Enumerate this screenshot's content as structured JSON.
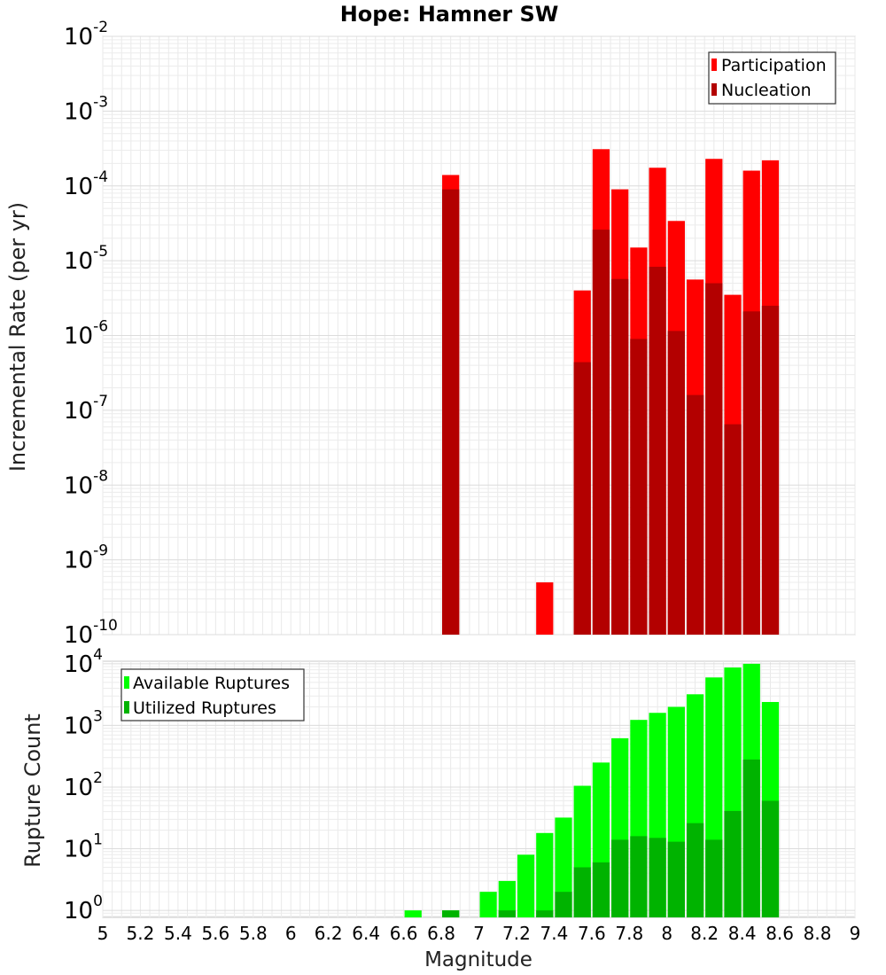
{
  "chart_data": [
    {
      "type": "bar",
      "title": "Hope: Hamner SW",
      "ylabel": "Incremental Rate (per yr)",
      "xlabel": "",
      "xlim": [
        5,
        9
      ],
      "ylim": [
        1e-10,
        0.01
      ],
      "yscale": "log",
      "bin_width": 0.1,
      "legend_position": "top-right",
      "ytick_exponents": [
        "-10",
        "-9",
        "-8",
        "-7",
        "-6",
        "-5",
        "-4",
        "-3",
        "-2"
      ],
      "series": [
        {
          "name": "Participation",
          "color": "#ff0000",
          "x": [
            6.85,
            7.35,
            7.55,
            7.65,
            7.75,
            7.85,
            7.95,
            8.05,
            8.15,
            8.25,
            8.35,
            8.45,
            8.55
          ],
          "values": [
            0.00014,
            5e-10,
            4e-06,
            0.00031,
            9e-05,
            1.5e-05,
            0.000175,
            3.4e-05,
            5.6e-06,
            0.00023,
            3.5e-06,
            0.00016,
            0.00022
          ]
        },
        {
          "name": "Nucleation",
          "color": "#b30000",
          "x": [
            6.85,
            7.55,
            7.65,
            7.75,
            7.85,
            7.95,
            8.05,
            8.15,
            8.25,
            8.35,
            8.45,
            8.55
          ],
          "values": [
            9e-05,
            4.4e-07,
            2.6e-05,
            5.7e-06,
            9e-07,
            8.3e-06,
            1.15e-06,
            1.6e-07,
            5e-06,
            6.5e-08,
            2.1e-06,
            2.5e-06
          ]
        }
      ]
    },
    {
      "type": "bar",
      "title": "",
      "ylabel": "Rupture Count",
      "xlabel": "Magnitude",
      "xlim": [
        5,
        9
      ],
      "ylim": [
        0.77,
        11000
      ],
      "yscale": "log",
      "bin_width": 0.1,
      "legend_position": "top-left",
      "ytick_exponents": [
        "0",
        "1",
        "2",
        "3",
        "4"
      ],
      "xticks": [
        "5",
        "5.2",
        "5.4",
        "5.6",
        "5.8",
        "6",
        "6.2",
        "6.4",
        "6.6",
        "6.8",
        "7",
        "7.2",
        "7.4",
        "7.6",
        "7.8",
        "8",
        "8.2",
        "8.4",
        "8.6",
        "8.8",
        "9"
      ],
      "series": [
        {
          "name": "Available Ruptures",
          "color": "#00ff00",
          "x": [
            6.65,
            6.85,
            7.05,
            7.15,
            7.25,
            7.35,
            7.45,
            7.55,
            7.65,
            7.75,
            7.85,
            7.95,
            8.05,
            8.15,
            8.25,
            8.35,
            8.45,
            8.55
          ],
          "values": [
            1,
            1,
            2,
            3,
            8,
            18,
            32,
            105,
            250,
            620,
            1230,
            1600,
            2000,
            3200,
            6000,
            8700,
            10000,
            2400
          ]
        },
        {
          "name": "Utilized Ruptures",
          "color": "#00b300",
          "x": [
            6.85,
            7.15,
            7.35,
            7.45,
            7.55,
            7.65,
            7.75,
            7.85,
            7.95,
            8.05,
            8.15,
            8.25,
            8.35,
            8.45,
            8.55
          ],
          "values": [
            1,
            1,
            1,
            2,
            5,
            6,
            14,
            16,
            15,
            13,
            26,
            14,
            41,
            280,
            60
          ]
        }
      ]
    }
  ]
}
